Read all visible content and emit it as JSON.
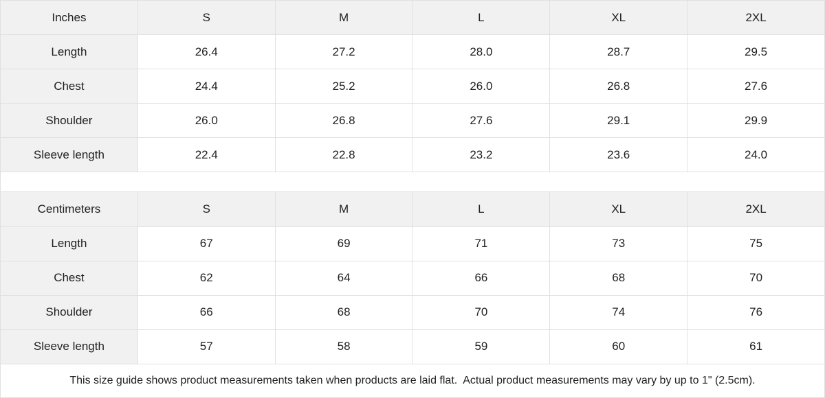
{
  "colors": {
    "header_cell_bg": "#f1f1f1",
    "border": "#e0e0e0",
    "text": "#212121",
    "background": "#ffffff"
  },
  "inches_table": {
    "unit_label": "Inches",
    "columns": [
      "S",
      "M",
      "L",
      "XL",
      "2XL"
    ],
    "rows": [
      {
        "label": "Length",
        "values": [
          "26.4",
          "27.2",
          "28.0",
          "28.7",
          "29.5"
        ]
      },
      {
        "label": "Chest",
        "values": [
          "24.4",
          "25.2",
          "26.0",
          "26.8",
          "27.6"
        ]
      },
      {
        "label": "Shoulder",
        "values": [
          "26.0",
          "26.8",
          "27.6",
          "29.1",
          "29.9"
        ]
      },
      {
        "label": "Sleeve length",
        "values": [
          "22.4",
          "22.8",
          "23.2",
          "23.6",
          "24.0"
        ]
      }
    ]
  },
  "centimeters_table": {
    "unit_label": "Centimeters",
    "columns": [
      "S",
      "M",
      "L",
      "XL",
      "2XL"
    ],
    "rows": [
      {
        "label": "Length",
        "values": [
          "67",
          "69",
          "71",
          "73",
          "75"
        ]
      },
      {
        "label": "Chest",
        "values": [
          "62",
          "64",
          "66",
          "68",
          "70"
        ]
      },
      {
        "label": "Shoulder",
        "values": [
          "66",
          "68",
          "70",
          "74",
          "76"
        ]
      },
      {
        "label": "Sleeve length",
        "values": [
          "57",
          "58",
          "59",
          "60",
          "61"
        ]
      }
    ]
  },
  "footer": {
    "note": "This size guide shows product measurements taken when products are laid flat.  Actual product measurements may vary by up to 1\" (2.5cm)."
  }
}
